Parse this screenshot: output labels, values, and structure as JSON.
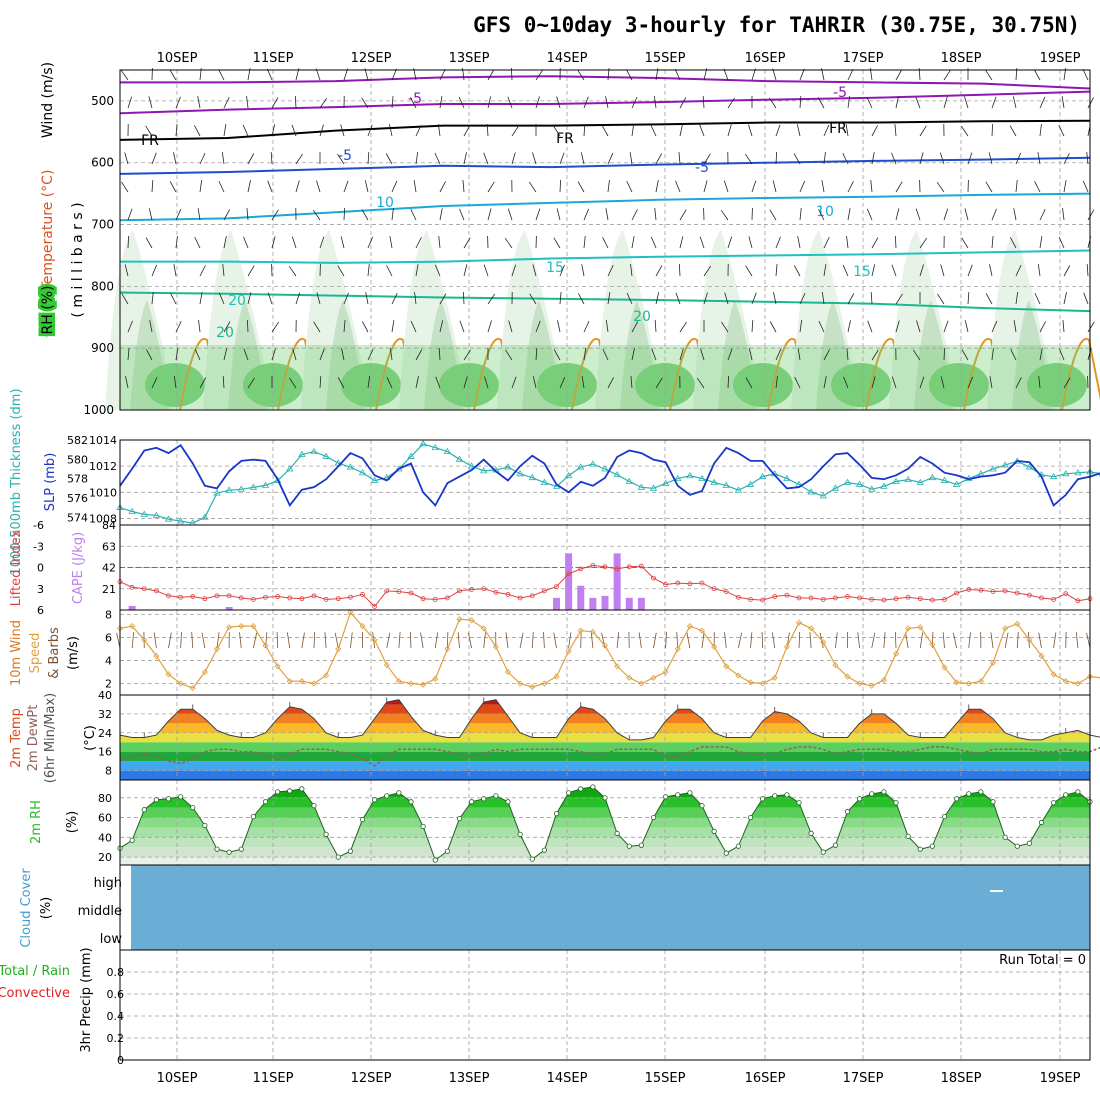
{
  "title": "GFS 0~10day 3-hourly for TAHRIR (30.75E, 30.75N)",
  "dates": [
    "10SEP",
    "11SEP",
    "12SEP",
    "13SEP",
    "14SEP",
    "15SEP",
    "16SEP",
    "17SEP",
    "18SEP",
    "19SEP"
  ],
  "colors": {
    "grid": "#a0a0a0",
    "purple": "#8e17b2",
    "black": "#000000",
    "blue": "#1f4ecc",
    "cyan": "#1aa8d8",
    "teal": "#1ec0c0",
    "green": "#1ab890",
    "slp": "#1a36c8",
    "thick": "#2ab0b0",
    "li": "#e04040",
    "cape": "#c080f0",
    "wind": "#e0a040",
    "temp_line": "#404040",
    "dew": "#906060",
    "cloud": "#6aaed6",
    "rh_green": "#28b828"
  },
  "chart_data": [
    {
      "type": "heatmap",
      "name": "upper-air",
      "ylabel_parts": [
        "Wind",
        "(m/s)"
      ],
      "ylabel_temp": "Temperature (°C)",
      "ylabel_rh": "RH (%)",
      "ylabel_mb": "( m i l l i b a r s )",
      "yticks": [
        500,
        600,
        700,
        800,
        900,
        1000
      ],
      "ylim": [
        450,
        1000
      ],
      "isotherms": [
        {
          "label": "-5",
          "color_key": "purple",
          "values": [
            470,
            470,
            468,
            462,
            460,
            463,
            468,
            470,
            472,
            480
          ]
        },
        {
          "label": "-5",
          "color_key": "purple",
          "values": [
            520,
            514,
            510,
            505,
            505,
            502,
            498,
            495,
            490,
            485
          ]
        },
        {
          "label": "FR",
          "color_key": "black",
          "values": [
            563,
            560,
            548,
            540,
            540,
            538,
            535,
            535,
            533,
            532
          ]
        },
        {
          "label": "-5",
          "color_key": "blue",
          "values": [
            618,
            615,
            610,
            605,
            607,
            603,
            600,
            597,
            595,
            592
          ]
        },
        {
          "label": "10",
          "color_key": "cyan",
          "values": [
            693,
            690,
            680,
            670,
            665,
            660,
            657,
            655,
            652,
            650
          ]
        },
        {
          "label": "15",
          "color_key": "teal",
          "values": [
            760,
            760,
            762,
            760,
            755,
            752,
            750,
            748,
            745,
            742
          ]
        },
        {
          "label": "20",
          "color_key": "green",
          "values": [
            810,
            812,
            815,
            818,
            820,
            822,
            825,
            828,
            835,
            840
          ]
        }
      ],
      "inline_labels": [
        "-5",
        "-5",
        "FR",
        "FR",
        "FR",
        "-5",
        "-5",
        "10",
        "10",
        "15",
        "15",
        "20",
        "20",
        "20"
      ]
    },
    {
      "type": "line",
      "name": "slp-thickness",
      "ylabel_left": "1000-500mb Thickness (dm)",
      "ylabel_right": "SLP (mb)",
      "thickness_ticks": [
        574,
        576,
        578,
        580,
        582
      ],
      "slp_ticks": [
        1008,
        1010,
        1012,
        1014
      ],
      "slp_series": [
        1010.5,
        1011.8,
        1013.2,
        1013.4,
        1013,
        1013.6,
        1012.2,
        1010.5,
        1010.3,
        1011.6,
        1012.4,
        1012.5,
        1012.4,
        1011,
        1009,
        1010.2,
        1010.4,
        1011,
        1012,
        1013,
        1012.6,
        1011.3,
        1010.9,
        1011.8,
        1012.2,
        1010,
        1009,
        1010.7,
        1011.2,
        1011.7,
        1012.5,
        1011.6,
        1010.9,
        1012,
        1012.8,
        1012.2,
        1010.6,
        1010,
        1010.8,
        1010.5,
        1011.1,
        1012.7,
        1013.2,
        1013,
        1012.5,
        1012.3,
        1010.5,
        1009.8,
        1010.1,
        1012.2,
        1013.4,
        1013,
        1012.4,
        1012.4,
        1011.3,
        1010.3,
        1010.4,
        1011,
        1012,
        1012.9,
        1013,
        1012.1,
        1011.1,
        1011,
        1011.3,
        1011.8,
        1012.7,
        1012.2,
        1011.5,
        1011.3,
        1011,
        1011.2,
        1011.3,
        1011.5,
        1012.4,
        1012.3,
        1011.2,
        1009,
        1009.8,
        1011,
        1011.2,
        1011.5,
        1011.6
      ],
      "thickness_series": [
        575,
        574.6,
        574.3,
        574.2,
        573.8,
        573.6,
        573.4,
        574,
        576.5,
        576.8,
        576.9,
        577.1,
        577.3,
        577.8,
        579,
        580.5,
        580.8,
        580.3,
        579.6,
        579.2,
        578.6,
        577.8,
        578.1,
        579,
        580.3,
        581.6,
        581.2,
        580.8,
        580,
        579.3,
        578.8,
        578.9,
        579.2,
        578.5,
        578.1,
        577.6,
        577.2,
        578.3,
        579.2,
        579.5,
        579,
        578.4,
        577.7,
        577.1,
        577,
        577.5,
        578,
        578.3,
        578,
        577.6,
        577.3,
        576.8,
        577.4,
        578.2,
        578.5,
        578,
        577.4,
        576.6,
        576.2,
        577,
        577.6,
        577.4,
        576.9,
        577.2,
        577.7,
        577.9,
        577.6,
        578.1,
        577.8,
        577.4,
        578,
        578.5,
        579,
        579.4,
        579.8,
        579.2,
        578.4,
        578.2,
        578.5,
        578.6,
        578.7,
        578.5,
        578.2
      ]
    },
    {
      "type": "bar",
      "name": "li-cape",
      "ylabel_li": "Lifted Index",
      "ylabel_cape": "CAPE (J/kg)",
      "li_ticks": [
        "-6",
        "-3",
        "0",
        "3",
        "6"
      ],
      "cape_ticks": [
        21,
        42,
        63,
        84
      ],
      "li_series": [
        2,
        2.8,
        3,
        3.3,
        4,
        4.2,
        4.1,
        4.4,
        4,
        4,
        4.3,
        4.5,
        4.2,
        4.1,
        4.3,
        4.4,
        4,
        4.5,
        4.4,
        4.2,
        3.8,
        5.5,
        3.3,
        3.4,
        3.6,
        4.4,
        4.5,
        4.3,
        3.3,
        3.1,
        3,
        3.5,
        3.8,
        4.3,
        4,
        3.3,
        2.7,
        0.9,
        0.2,
        -0.3,
        -0.1,
        0.2,
        -0.1,
        -0.2,
        1.5,
        2.4,
        2.2,
        2.3,
        2.2,
        3,
        3.4,
        4.2,
        4.5,
        4.6,
        4.1,
        3.9,
        4.3,
        4.3,
        4.5,
        4.3,
        4.1,
        4.3,
        4.5,
        4.6,
        4.4,
        4.2,
        4.4,
        4.6,
        4.5,
        3.6,
        3.1,
        3.2,
        3.4,
        3.3,
        3.6,
        3.9,
        4.3,
        4.5,
        3.7,
        4.7,
        4.4
      ],
      "cape_series": [
        {
          "i": 1,
          "v": 4
        },
        {
          "i": 9,
          "v": 3
        },
        {
          "i": 36,
          "v": 12
        },
        {
          "i": 37,
          "v": 56
        },
        {
          "i": 38,
          "v": 24
        },
        {
          "i": 39,
          "v": 12
        },
        {
          "i": 40,
          "v": 14
        },
        {
          "i": 41,
          "v": 56
        },
        {
          "i": 42,
          "v": 12
        },
        {
          "i": 43,
          "v": 12
        }
      ]
    },
    {
      "type": "line",
      "name": "wind10m",
      "ylabel_a": "10m Wind",
      "ylabel_b": "Speed",
      "ylabel_c": "& Barbs",
      "ylabel_unit": "(m/s)",
      "yticks": [
        2,
        4,
        6,
        8
      ],
      "ylim": [
        1,
        8.4
      ],
      "series": [
        6.8,
        7,
        5.8,
        4.4,
        2.8,
        2,
        1.6,
        3,
        5,
        6.9,
        7,
        7,
        5.3,
        3.5,
        2.2,
        2.2,
        2,
        2.7,
        5,
        8.2,
        7,
        5.8,
        3.6,
        2.2,
        2,
        1.9,
        2.4,
        5,
        7.6,
        7.5,
        6.8,
        5.2,
        3,
        2,
        1.7,
        2,
        2.6,
        4.8,
        6.6,
        6.5,
        5.3,
        3.5,
        2.5,
        2,
        2.5,
        3,
        5,
        7,
        6.6,
        5.2,
        3.5,
        2.7,
        2.1,
        2,
        2.5,
        5.2,
        7.3,
        6.8,
        5.6,
        3.6,
        2.6,
        2,
        1.8,
        2.3,
        4.6,
        6.8,
        6.9,
        5.4,
        3.4,
        2.1,
        2,
        2.2,
        3.8,
        6.8,
        7.2,
        5.8,
        4.4,
        2.8,
        2.2,
        2,
        2.6,
        2.5,
        3
      ]
    },
    {
      "type": "area",
      "name": "temp2m",
      "ylabel_a": "2m Temp",
      "ylabel_b": "2m DewPt",
      "ylabel_c": "(6hr Min/Max)",
      "ylabel_unit": "(°C)",
      "yticks": [
        8,
        16,
        24,
        32,
        40
      ],
      "ylim": [
        4,
        40
      ],
      "temp_series": [
        23,
        22,
        22,
        23,
        29,
        34,
        34,
        30,
        25,
        23,
        22,
        22,
        24,
        30,
        35,
        34,
        30,
        24,
        22,
        22,
        23,
        30,
        37,
        38,
        31,
        25,
        23,
        22,
        22,
        30,
        37,
        38,
        31,
        24,
        22,
        22,
        22,
        30,
        35,
        34,
        30,
        24,
        21,
        21,
        22,
        29,
        34,
        34,
        30,
        24,
        22,
        22,
        22,
        29,
        33,
        32,
        29,
        24,
        22,
        22,
        22,
        28,
        32,
        32,
        28,
        23,
        22,
        22,
        22,
        28,
        34,
        34,
        30,
        24,
        22,
        21,
        21,
        23,
        24,
        25,
        23,
        22,
        21
      ],
      "dew_series": [
        12,
        14,
        15,
        14,
        12,
        11,
        13,
        16,
        17,
        17,
        16,
        16,
        14,
        13,
        15,
        17,
        17,
        17,
        16,
        15,
        13,
        10,
        14,
        17,
        17,
        17,
        17,
        16,
        15,
        14,
        15,
        17,
        16,
        17,
        17,
        17,
        17,
        17,
        16,
        15,
        15,
        17,
        17,
        17,
        17,
        14,
        14,
        16,
        18,
        18,
        18,
        16,
        15,
        15,
        15,
        17,
        18,
        18,
        17,
        15,
        16,
        17,
        17,
        17,
        16,
        16,
        17,
        18,
        18,
        17,
        16,
        15,
        17,
        17,
        17,
        17,
        16,
        16,
        17,
        16,
        16,
        18,
        18
      ]
    },
    {
      "type": "area",
      "name": "rh2m",
      "ylabel_a": "2m RH",
      "ylabel_unit": "(%)",
      "yticks": [
        20,
        40,
        60,
        80
      ],
      "ylim": [
        12,
        98
      ],
      "series": [
        29,
        37,
        68,
        78,
        79,
        81,
        70,
        52,
        28,
        25,
        28,
        61,
        76,
        86,
        87,
        89,
        72,
        43,
        20,
        26,
        58,
        78,
        82,
        85,
        76,
        51,
        17,
        26,
        59,
        76,
        79,
        82,
        76,
        43,
        18,
        27,
        64,
        85,
        89,
        91,
        80,
        44,
        31,
        32,
        60,
        81,
        83,
        85,
        72,
        46,
        24,
        31,
        60,
        79,
        82,
        83,
        75,
        44,
        25,
        32,
        66,
        79,
        84,
        86,
        75,
        41,
        28,
        31,
        61,
        79,
        84,
        86,
        76,
        40,
        31,
        34,
        55,
        75,
        83,
        86,
        76
      ]
    },
    {
      "type": "heatmap",
      "name": "cloud",
      "ylabel_a": "Cloud Cover",
      "ylabel_unit": "(%)",
      "levels": [
        "high",
        "middle",
        "low"
      ]
    },
    {
      "type": "bar",
      "name": "precip",
      "ylabel_a": "Total / Rain",
      "ylabel_b": "Convective",
      "ylabel_c": "3hr Precip (mm)",
      "yticks": [
        "0",
        "0.2",
        "0.4",
        "0.6",
        "0.8"
      ],
      "ylim": [
        0,
        1
      ],
      "run_total": "Run Total = 0",
      "values": []
    }
  ]
}
